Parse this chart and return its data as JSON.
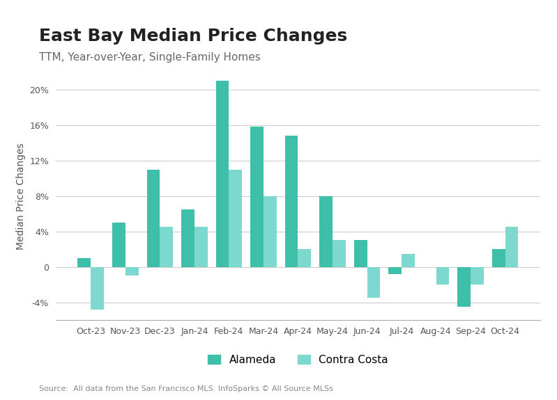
{
  "title": "East Bay Median Price Changes",
  "subtitle": "TTM, Year-over-Year, Single-Family Homes",
  "ylabel": "Median Price Changes",
  "source": "Source:  All data from the San Francisco MLS. InfoSparks © All Source MLSs",
  "categories": [
    "Oct-23",
    "Nov-23",
    "Dec-23",
    "Jan-24",
    "Feb-24",
    "Mar-24",
    "Apr-24",
    "May-24",
    "Jun-24",
    "Jul-24",
    "Aug-24",
    "Sep-24",
    "Oct-24"
  ],
  "alameda": [
    1.0,
    5.0,
    11.0,
    6.5,
    21.0,
    15.8,
    14.8,
    8.0,
    3.0,
    -0.8,
    0.0,
    -4.5,
    2.0
  ],
  "contra_costa": [
    -4.8,
    -1.0,
    4.5,
    4.5,
    11.0,
    8.0,
    2.0,
    3.0,
    -3.5,
    1.5,
    -2.0,
    -2.0,
    4.5
  ],
  "alameda_color": "#3dbfaa",
  "contra_costa_color": "#7dd9d0",
  "ylim": [
    -6,
    22
  ],
  "yticks": [
    -4,
    0,
    4,
    8,
    12,
    16,
    20
  ],
  "ytick_labels": [
    "-4%",
    "0",
    "4%",
    "8%",
    "12%",
    "16%",
    "20%"
  ],
  "bar_width": 0.38,
  "background_color": "#ffffff",
  "plot_bg_color": "#ffffff",
  "title_fontsize": 18,
  "subtitle_fontsize": 11,
  "legend_fontsize": 11,
  "axis_label_fontsize": 10,
  "tick_fontsize": 9,
  "source_fontsize": 8
}
